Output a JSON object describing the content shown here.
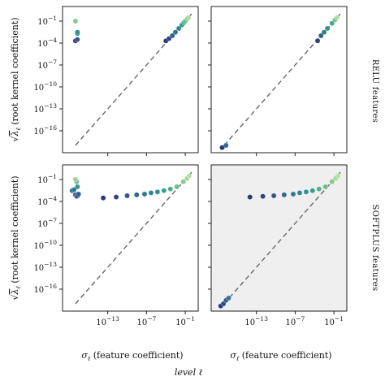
{
  "chart_data": {
    "type": "scatter",
    "row_labels": [
      "RELU features",
      "SOFTPLUS features"
    ],
    "xlabel": "σ_ℓ (feature coefficient)",
    "ylabel": "√λ_ℓ (root kernel coefficient)",
    "xlabel_symbol": "σ",
    "xlabel_sub": "ℓ",
    "xlabel_rest": " (feature coefficient)",
    "ylabel_symbol": "λ",
    "ylabel_sub": "ℓ",
    "ylabel_rest": " (root kernel coefficient)",
    "colorbar_label": "level ℓ",
    "x_scale": "log",
    "y_scale": "log",
    "xlim": [
      1e-20,
      10
    ],
    "ylim": [
      1e-19,
      10
    ],
    "x_ticks": [
      {
        "v": 1e-13,
        "label": "10^-13"
      },
      {
        "v": 1e-07,
        "label": "10^-7"
      },
      {
        "v": 0.1,
        "label": "10^-1"
      }
    ],
    "y_ticks": [
      {
        "v": 0.1,
        "label": "10^-1"
      },
      {
        "v": 0.0001,
        "label": "10^-4"
      },
      {
        "v": 1e-07,
        "label": "10^-7"
      },
      {
        "v": 1e-10,
        "label": "10^-10"
      },
      {
        "v": 1e-13,
        "label": "10^-13"
      },
      {
        "v": 1e-16,
        "label": "10^-16"
      }
    ],
    "colormap": [
      "#2c2a6b",
      "#31558c",
      "#2f7f8f",
      "#34a18a",
      "#7cc38a",
      "#bde3a8"
    ],
    "reference_line": "y = x (dashed)",
    "panels": [
      {
        "row": 0,
        "col": 0,
        "shaded": false,
        "points": [
          {
            "x": 1e-18,
            "y": 0.0002,
            "c": 0.05
          },
          {
            "x": 2e-18,
            "y": 0.0003,
            "c": 0.2
          },
          {
            "x": 2e-18,
            "y": 0.002,
            "c": 0.35
          },
          {
            "x": 2e-18,
            "y": 0.003,
            "c": 0.5
          },
          {
            "x": 1e-18,
            "y": 0.1,
            "c": 0.85
          },
          {
            "x": 0.0001,
            "y": 0.0002,
            "c": 0.05
          },
          {
            "x": 0.0003,
            "y": 0.0004,
            "c": 0.15
          },
          {
            "x": 0.001,
            "y": 0.001,
            "c": 0.25
          },
          {
            "x": 0.003,
            "y": 0.003,
            "c": 0.35
          },
          {
            "x": 0.01,
            "y": 0.01,
            "c": 0.45
          },
          {
            "x": 0.03,
            "y": 0.03,
            "c": 0.55
          },
          {
            "x": 0.06,
            "y": 0.06,
            "c": 0.65
          },
          {
            "x": 0.1,
            "y": 0.1,
            "c": 0.75
          },
          {
            "x": 0.2,
            "y": 0.2,
            "c": 0.85
          },
          {
            "x": 0.3,
            "y": 0.3,
            "c": 0.95
          }
        ]
      },
      {
        "row": 0,
        "col": 1,
        "shaded": false,
        "points": [
          {
            "x": 5e-19,
            "y": 5e-19,
            "c": 0.05
          },
          {
            "x": 2e-18,
            "y": 1e-18,
            "c": 0.3
          },
          {
            "x": 0.0003,
            "y": 0.0002,
            "c": 0.1
          },
          {
            "x": 0.001,
            "y": 0.001,
            "c": 0.25
          },
          {
            "x": 0.003,
            "y": 0.003,
            "c": 0.4
          },
          {
            "x": 0.01,
            "y": 0.01,
            "c": 0.5
          },
          {
            "x": 0.05,
            "y": 0.05,
            "c": 0.65
          },
          {
            "x": 0.15,
            "y": 0.15,
            "c": 0.8
          },
          {
            "x": 0.3,
            "y": 0.3,
            "c": 0.95
          }
        ]
      },
      {
        "row": 1,
        "col": 0,
        "shaded": false,
        "points": [
          {
            "x": 3e-19,
            "y": 0.003,
            "c": 0.3
          },
          {
            "x": 6e-19,
            "y": 0.004,
            "c": 0.35
          },
          {
            "x": 1e-18,
            "y": 0.0008,
            "c": 0.2
          },
          {
            "x": 1.5e-18,
            "y": 0.0005,
            "c": 0.1
          },
          {
            "x": 2e-18,
            "y": 0.0006,
            "c": 0.15
          },
          {
            "x": 3e-18,
            "y": 0.001,
            "c": 0.25
          },
          {
            "x": 2e-18,
            "y": 0.01,
            "c": 0.55
          },
          {
            "x": 1.5e-18,
            "y": 0.05,
            "c": 0.75
          },
          {
            "x": 1e-18,
            "y": 0.1,
            "c": 0.9
          },
          {
            "x": 2e-14,
            "y": 0.0003,
            "c": 0.05
          },
          {
            "x": 2e-12,
            "y": 0.0004,
            "c": 0.12
          },
          {
            "x": 1e-10,
            "y": 0.0006,
            "c": 0.2
          },
          {
            "x": 3e-09,
            "y": 0.0008,
            "c": 0.28
          },
          {
            "x": 5e-08,
            "y": 0.001,
            "c": 0.36
          },
          {
            "x": 5e-07,
            "y": 0.0015,
            "c": 0.44
          },
          {
            "x": 5e-06,
            "y": 0.002,
            "c": 0.52
          },
          {
            "x": 5e-05,
            "y": 0.003,
            "c": 0.6
          },
          {
            "x": 0.0005,
            "y": 0.005,
            "c": 0.68
          },
          {
            "x": 0.005,
            "y": 0.01,
            "c": 0.76
          },
          {
            "x": 0.05,
            "y": 0.05,
            "c": 0.84
          },
          {
            "x": 0.2,
            "y": 0.15,
            "c": 0.92
          },
          {
            "x": 0.4,
            "y": 0.3,
            "c": 0.98
          }
        ]
      },
      {
        "row": 1,
        "col": 1,
        "shaded": true,
        "points": [
          {
            "x": 3e-19,
            "y": 5e-19,
            "c": 0.05
          },
          {
            "x": 8e-19,
            "y": 1e-18,
            "c": 0.15
          },
          {
            "x": 2e-18,
            "y": 3e-18,
            "c": 0.25
          },
          {
            "x": 5e-18,
            "y": 6e-18,
            "c": 0.35
          },
          {
            "x": 1e-14,
            "y": 0.0004,
            "c": 0.05
          },
          {
            "x": 1e-12,
            "y": 0.0005,
            "c": 0.12
          },
          {
            "x": 5e-11,
            "y": 0.0006,
            "c": 0.2
          },
          {
            "x": 2e-09,
            "y": 0.0008,
            "c": 0.28
          },
          {
            "x": 5e-08,
            "y": 0.001,
            "c": 0.36
          },
          {
            "x": 5e-07,
            "y": 0.0015,
            "c": 0.44
          },
          {
            "x": 5e-06,
            "y": 0.002,
            "c": 0.52
          },
          {
            "x": 5e-05,
            "y": 0.003,
            "c": 0.6
          },
          {
            "x": 0.0005,
            "y": 0.005,
            "c": 0.68
          },
          {
            "x": 0.005,
            "y": 0.01,
            "c": 0.76
          },
          {
            "x": 0.05,
            "y": 0.05,
            "c": 0.84
          },
          {
            "x": 0.2,
            "y": 0.15,
            "c": 0.92
          },
          {
            "x": 0.4,
            "y": 0.3,
            "c": 0.98
          }
        ]
      }
    ]
  }
}
